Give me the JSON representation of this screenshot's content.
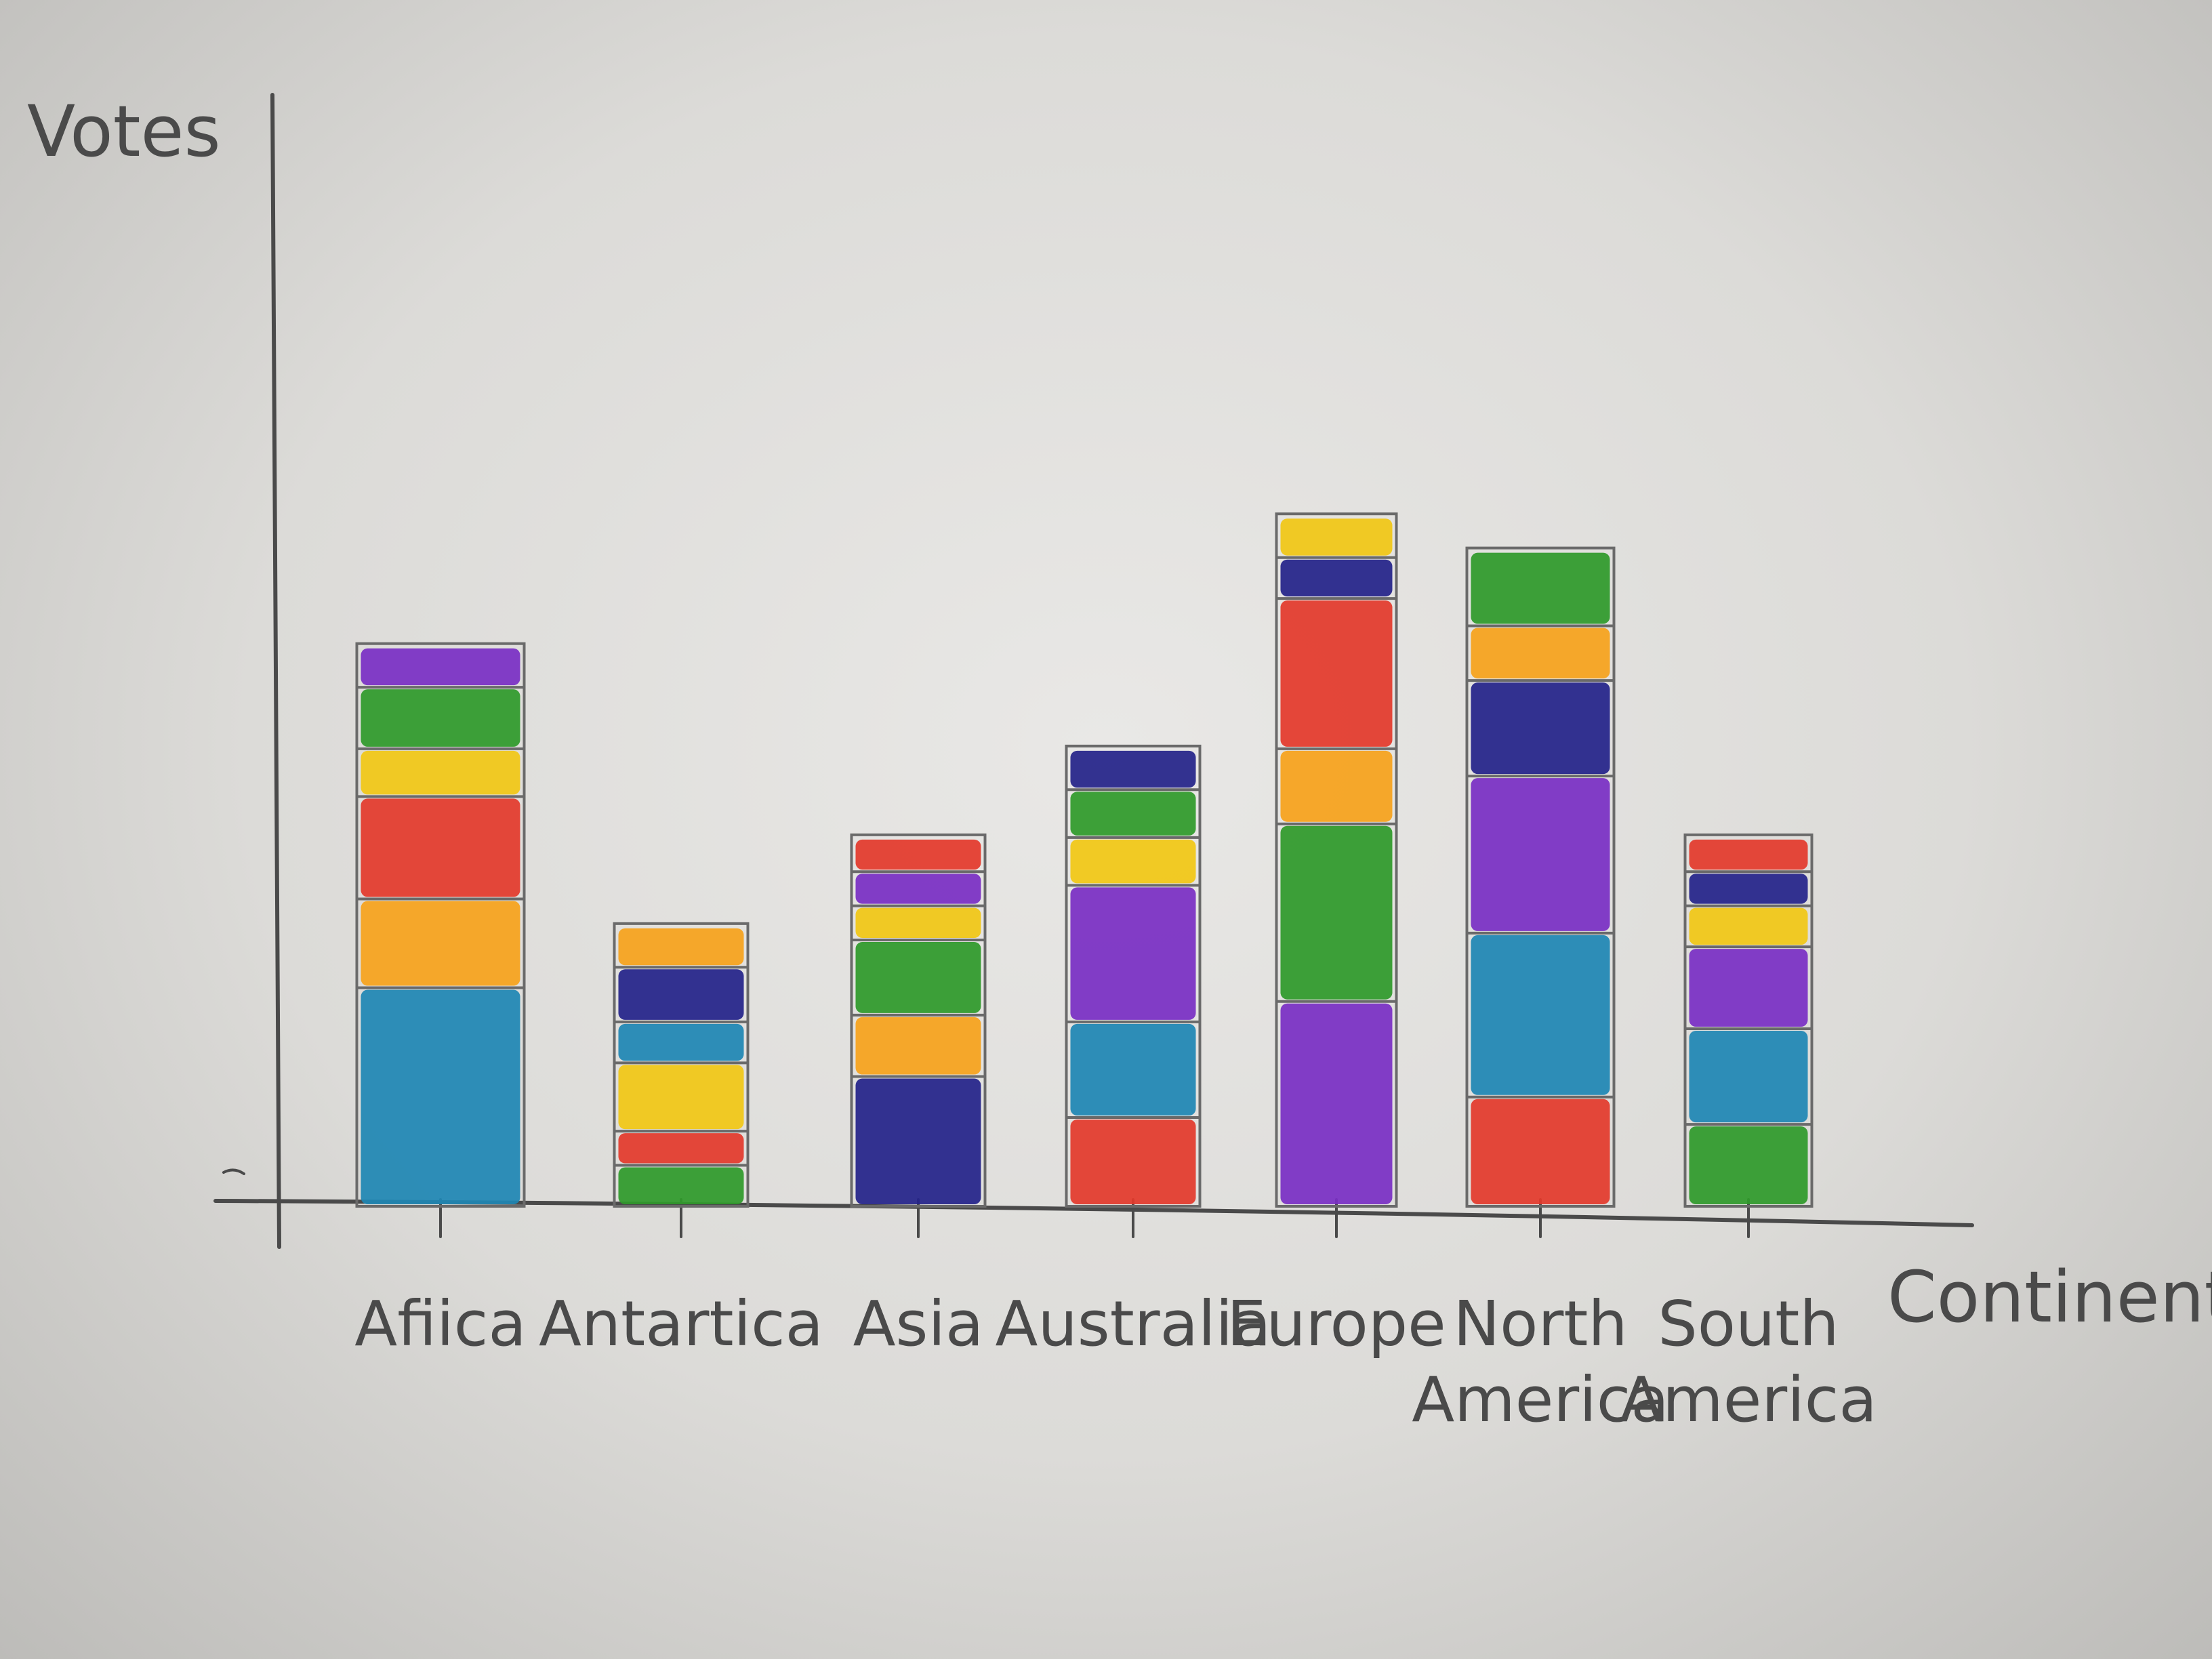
{
  "chart_data": {
    "type": "bar",
    "stacked": true,
    "ylabel": "Votes",
    "xlabel": "Continent.",
    "categories": [
      "Africa",
      "Antarctica",
      "Asia",
      "Australia",
      "Europe",
      "North America",
      "South America"
    ],
    "category_labels": [
      [
        "Afiica"
      ],
      [
        "Antartica"
      ],
      [
        "Asia"
      ],
      [
        "Australia"
      ],
      [
        "Europe"
      ],
      [
        "North",
        "America"
      ],
      [
        "South",
        "America"
      ]
    ],
    "ylim": [
      0,
      65
    ],
    "grid": false,
    "legend": "none",
    "stacks": [
      {
        "category": "Africa",
        "segments": [
          {
            "color": "teal",
            "value": 16
          },
          {
            "color": "orange",
            "value": 6.5
          },
          {
            "color": "red",
            "value": 7.5
          },
          {
            "color": "yellow",
            "value": 3.5
          },
          {
            "color": "green",
            "value": 4.5
          },
          {
            "color": "purple",
            "value": 3
          }
        ]
      },
      {
        "category": "Antarctica",
        "segments": [
          {
            "color": "green",
            "value": 3
          },
          {
            "color": "red",
            "value": 2.5
          },
          {
            "color": "yellow",
            "value": 5
          },
          {
            "color": "teal",
            "value": 3
          },
          {
            "color": "navy",
            "value": 4
          },
          {
            "color": "orange",
            "value": 3
          }
        ]
      },
      {
        "category": "Asia",
        "segments": [
          {
            "color": "navy",
            "value": 9.5
          },
          {
            "color": "orange",
            "value": 4.5
          },
          {
            "color": "green",
            "value": 5.5
          },
          {
            "color": "yellow",
            "value": 2.5
          },
          {
            "color": "purple",
            "value": 2.5
          },
          {
            "color": "red",
            "value": 2.5
          }
        ]
      },
      {
        "category": "Australia",
        "segments": [
          {
            "color": "red",
            "value": 6.5
          },
          {
            "color": "teal",
            "value": 7
          },
          {
            "color": "purple",
            "value": 10
          },
          {
            "color": "yellow",
            "value": 3.5
          },
          {
            "color": "green",
            "value": 3.5
          },
          {
            "color": "navy",
            "value": 3
          }
        ]
      },
      {
        "category": "Europe",
        "segments": [
          {
            "color": "purple",
            "value": 15
          },
          {
            "color": "green",
            "value": 13
          },
          {
            "color": "orange",
            "value": 5.5
          },
          {
            "color": "red",
            "value": 11
          },
          {
            "color": "navy",
            "value": 3
          },
          {
            "color": "yellow",
            "value": 3
          }
        ]
      },
      {
        "category": "North America",
        "segments": [
          {
            "color": "red",
            "value": 8
          },
          {
            "color": "teal",
            "value": 12
          },
          {
            "color": "purple",
            "value": 11.5
          },
          {
            "color": "navy",
            "value": 7
          },
          {
            "color": "orange",
            "value": 4
          },
          {
            "color": "green",
            "value": 5.5
          }
        ]
      },
      {
        "category": "South America",
        "segments": [
          {
            "color": "green",
            "value": 6
          },
          {
            "color": "teal",
            "value": 7
          },
          {
            "color": "purple",
            "value": 6
          },
          {
            "color": "yellow",
            "value": 3
          },
          {
            "color": "navy",
            "value": 2.5
          },
          {
            "color": "red",
            "value": 2.5
          }
        ]
      }
    ]
  },
  "colors": {
    "teal": "#1f86b4",
    "orange": "#f6a21c",
    "red": "#e33a2c",
    "yellow": "#f1c716",
    "green": "#2f9a2b",
    "purple": "#7a2fc4",
    "navy": "#25248a",
    "ink": "#4a4a4a"
  }
}
